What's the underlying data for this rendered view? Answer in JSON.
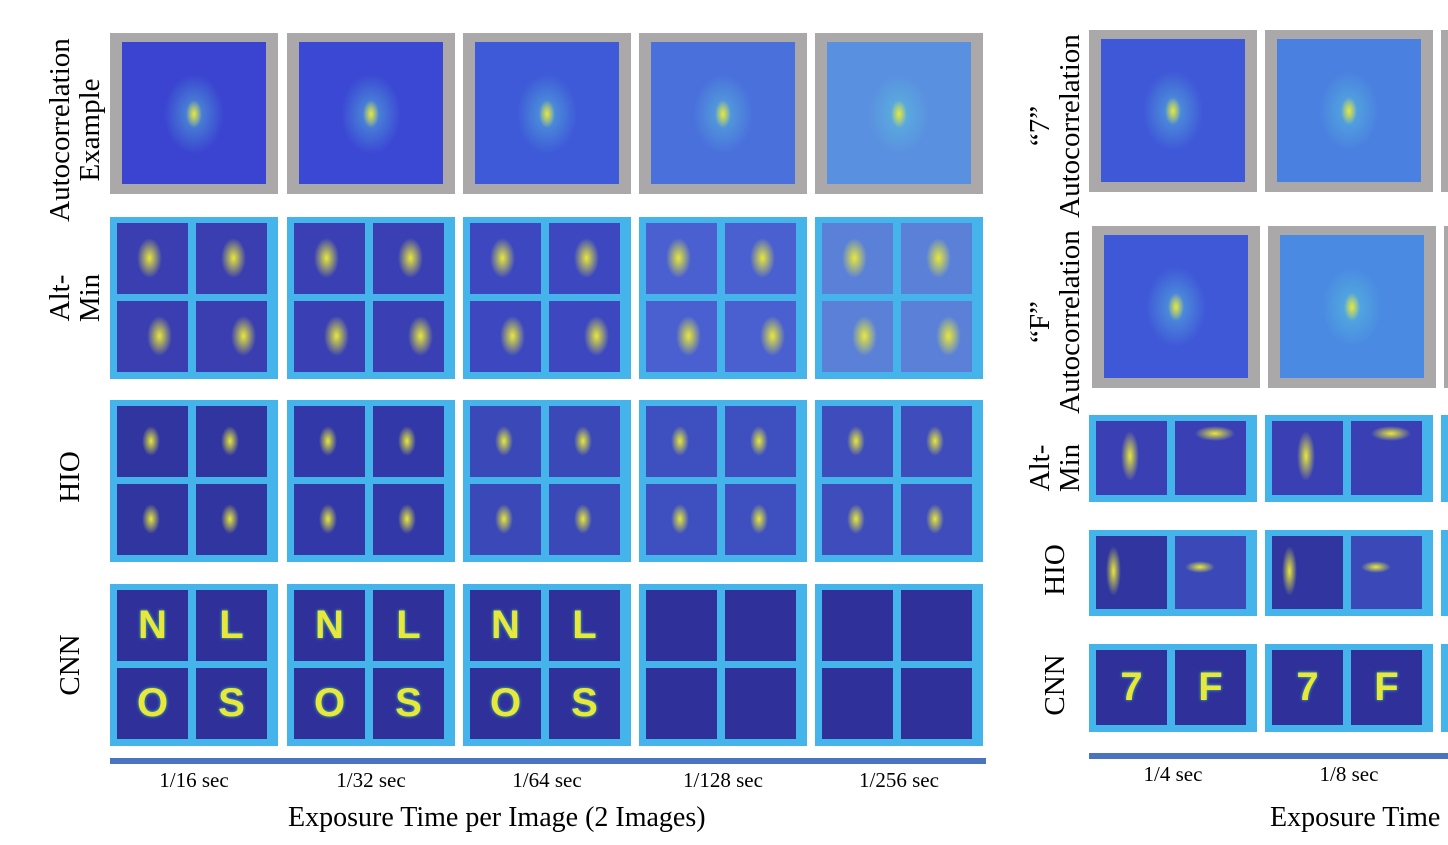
{
  "left_panel": {
    "row_labels": [
      [
        "Autocorrelation",
        "Example"
      ],
      [
        "Alt-",
        "Min"
      ],
      [
        "HIO"
      ],
      [
        "CNN"
      ]
    ],
    "exposure_times": [
      "1/16 sec",
      "1/32 sec",
      "1/64 sec",
      "1/128 sec",
      "1/256 sec"
    ],
    "cnn_letters": [
      "N",
      "L",
      "O",
      "S"
    ],
    "axis_title": "Exposure Time per Image (2 Images)"
  },
  "right_panel": {
    "row_labels": [
      [
        "“7”",
        "Autocorrelation"
      ],
      [
        "“F”",
        "Autocorrelation"
      ],
      [
        "Alt-",
        "Min"
      ],
      [
        "HIO"
      ],
      [
        "CNN"
      ]
    ],
    "exposure_times": [
      "1/4 sec",
      "1/8 sec"
    ],
    "cnn_letters": [
      "7",
      "F"
    ],
    "axis_title": "Exposure Time"
  },
  "colors": {
    "frame_gray": "#aaa8a8",
    "frame_blue": "#45b4ea",
    "image_blue": "#3b4fd8",
    "axis_bar": "#4a74c0",
    "highlight": "#e8e83a"
  }
}
